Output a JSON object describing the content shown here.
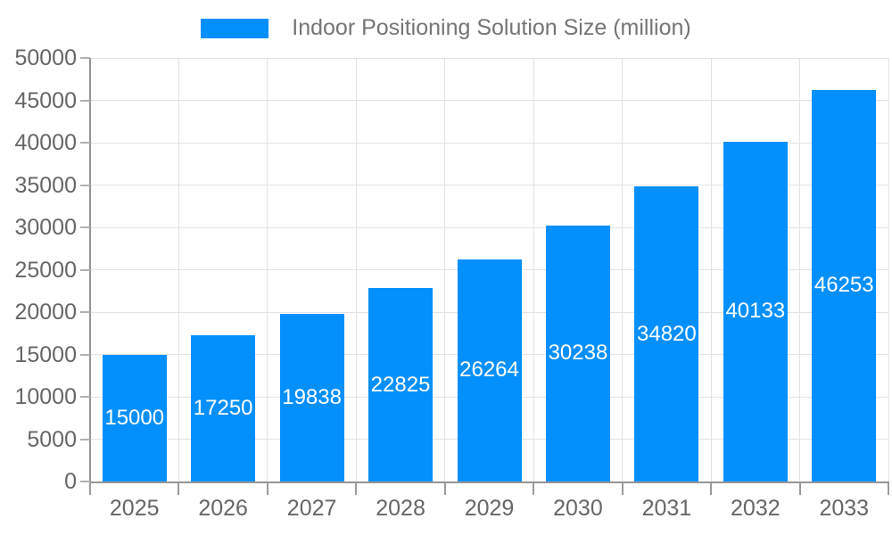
{
  "chart_data": {
    "type": "bar",
    "title": "",
    "legend_label": "Indoor Positioning Solution Size (million)",
    "categories": [
      "2025",
      "2026",
      "2027",
      "2028",
      "2029",
      "2030",
      "2031",
      "2032",
      "2033"
    ],
    "series": [
      {
        "name": "Indoor Positioning Solution Size (million)",
        "values": [
          15000,
          17250,
          19838,
          22825,
          26264,
          30238,
          34820,
          40133,
          46253
        ]
      }
    ],
    "xlabel": "",
    "ylabel": "",
    "ylim": [
      0,
      50000
    ],
    "yticks": [
      0,
      5000,
      10000,
      15000,
      20000,
      25000,
      30000,
      35000,
      40000,
      45000,
      50000
    ],
    "grid": true,
    "legend_position": "top",
    "bar_color": "#0490fc",
    "bar_label_color": "#ffffff",
    "axis_text_color": "#666666",
    "legend_text_color": "#757575",
    "axis_line_color": "#959595",
    "gridline_color": "#e3e3e3"
  }
}
